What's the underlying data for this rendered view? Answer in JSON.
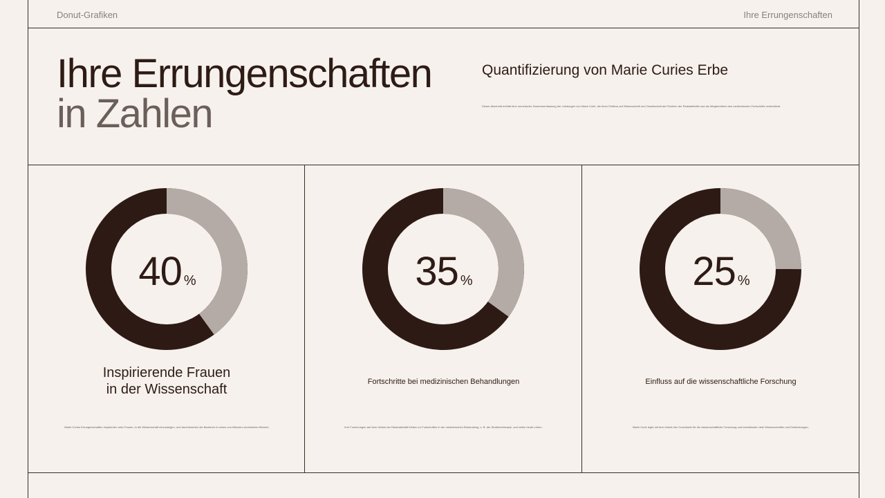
{
  "header": {
    "left": "Donut-Grafiken",
    "right": "Ihre Errungenschaften"
  },
  "title": {
    "line1": "Ihre Errungenschaften",
    "line2": "in Zahlen"
  },
  "subtitle": "Quantifizierung von Marie Curies Erbe",
  "description": "Dieser Abschnitt enthält eine numerische Zusammenfassung der Leistungen von Marie Curie, die ihren Einfluss auf Wissenschaft und Gesellschaft als Pionierin der Radioaktivität und als Wegbereiterin des medizinischen Fortschritts verdeutlicht.",
  "colors": {
    "dark": "#2e1a14",
    "light": "#b5aba6",
    "background": "#f6f1ec"
  },
  "chart_data": [
    {
      "type": "pie",
      "value": 40,
      "unit": "%",
      "label": "Inspirierende Frauen in der Wissenschaft",
      "note": "Marie Curies Errungenschaften inspirierten viele Frauen, in die Wissenschaft einzusteigen, und durchbrachen die Barrieren in einem von Männern dominierten Bereich."
    },
    {
      "type": "pie",
      "value": 35,
      "unit": "%",
      "label": "Fortschritte bei medizinischen Behandlungen",
      "note": "Ihre Forschungen auf dem Gebiet der Radioaktivität führten zu Fortschritten in der medizinischen Behandlung, z. B. der Strahlentherapie, und retten heute Leben."
    },
    {
      "type": "pie",
      "value": 25,
      "unit": "%",
      "label": "Einfluss auf die wissenschaftliche Forschung",
      "note": "Marie Curie legte mit ihrer Arbeit den Grundstein für die wissenschaftliche Forschung und beeinflusste viele Wissenschaftler und Entdeckungen."
    }
  ]
}
